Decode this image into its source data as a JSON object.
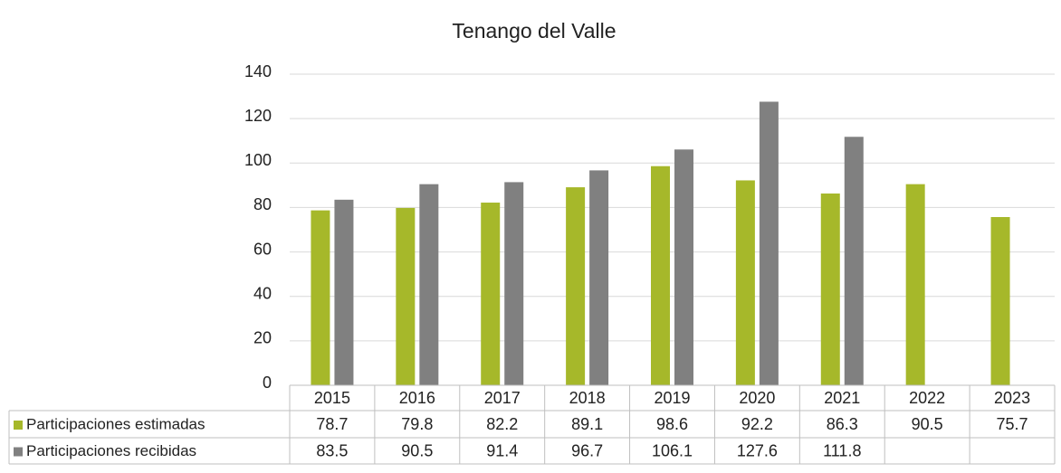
{
  "chart_data": {
    "type": "bar",
    "title": "Tenango del Valle",
    "categories": [
      "2015",
      "2016",
      "2017",
      "2018",
      "2019",
      "2020",
      "2021",
      "2022",
      "2023"
    ],
    "series": [
      {
        "name": "Participaciones estimadas",
        "color": "#a6b82a",
        "values": [
          78.7,
          79.8,
          82.2,
          89.1,
          98.6,
          92.2,
          86.3,
          90.5,
          75.7
        ]
      },
      {
        "name": "Participaciones recibidas",
        "color": "#808080",
        "values": [
          83.5,
          90.5,
          91.4,
          96.7,
          106.1,
          127.6,
          111.8,
          null,
          null
        ]
      }
    ],
    "ylim": [
      0,
      140
    ],
    "yticks": [
      0,
      20,
      40,
      60,
      80,
      100,
      120,
      140
    ],
    "grid": true,
    "data_table": true
  }
}
